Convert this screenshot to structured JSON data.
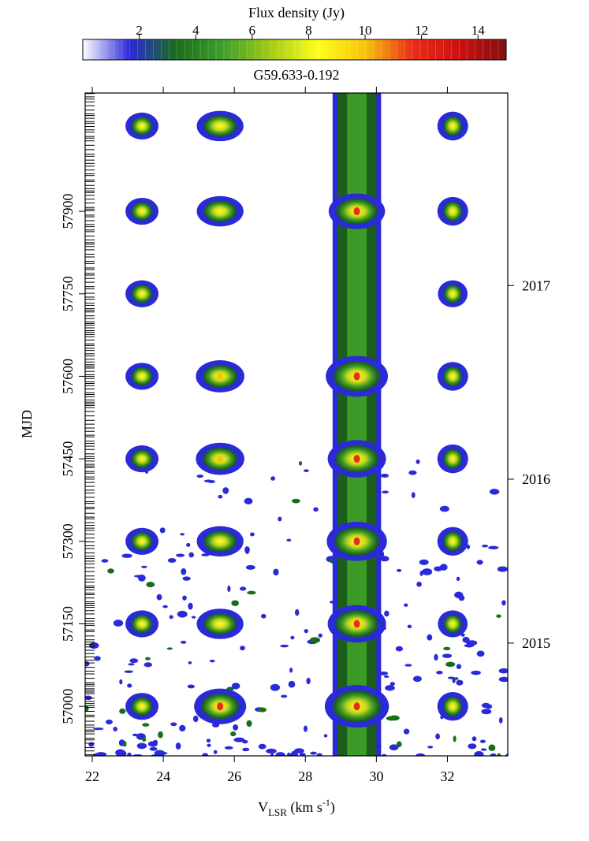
{
  "chart_data": {
    "type": "heatmap",
    "title": "G59.633-0.192",
    "xlabel_main": "V",
    "xlabel_sub": "LSR",
    "xlabel_units": " (km s",
    "xlabel_exp": "-1",
    "xlabel_close": ")",
    "ylabel": "MJD",
    "xlim": [
      21.8,
      33.7
    ],
    "ylim": [
      56910,
      58115
    ],
    "x_ticks": [
      "22",
      "24",
      "26",
      "28",
      "30",
      "32"
    ],
    "x_tick_values": [
      22,
      24,
      26,
      28,
      30,
      32
    ],
    "y_ticks": [
      "57000",
      "57150",
      "57300",
      "57450",
      "57600",
      "57750",
      "57900"
    ],
    "y_tick_values": [
      57000,
      57150,
      57300,
      57450,
      57600,
      57750,
      57900
    ],
    "year_ticks": [
      "2015",
      "2016",
      "2017"
    ],
    "year_tick_values": [
      57115,
      57413,
      57765
    ],
    "colorbar": {
      "label": "Flux density (Jy)",
      "range": [
        0,
        15
      ],
      "ticks": [
        "2",
        "4",
        "6",
        "8",
        "10",
        "12",
        "14"
      ],
      "tick_values": [
        2,
        4,
        6,
        8,
        10,
        12,
        14
      ],
      "colors": [
        "#ffffff",
        "#2a2ad8",
        "#1a6e1a",
        "#3ea02a",
        "#a4cc14",
        "#ffff18",
        "#f6c40a",
        "#ec2c18",
        "#cc1010",
        "#821010"
      ]
    },
    "features": [
      {
        "v": 29.45,
        "vwidth": 0.55,
        "peaks": [
          57900,
          57600,
          57450,
          57300,
          57150,
          57000
        ],
        "peak_flux": [
          6,
          9,
          7,
          8,
          7,
          10
        ]
      },
      {
        "v": 25.6,
        "vwidth": 0.5,
        "peaks": [
          58055,
          57900,
          57600,
          57450,
          57300,
          57150,
          57000
        ],
        "peak_flux": [
          3,
          3,
          4,
          4,
          3,
          3,
          6
        ]
      },
      {
        "v": 23.4,
        "vwidth": 0.35,
        "peaks": [
          58055,
          57900,
          57750,
          57600,
          57450,
          57300,
          57150,
          57000
        ],
        "peak_flux": [
          1,
          1,
          1,
          1,
          1,
          1,
          1,
          1
        ]
      },
      {
        "v": 32.15,
        "vwidth": 0.3,
        "peaks": [
          58055,
          57900,
          57750,
          57600,
          57450,
          57300,
          57150,
          57000
        ],
        "peak_flux": [
          2,
          2,
          1,
          2,
          2,
          2,
          1,
          2
        ]
      }
    ]
  }
}
